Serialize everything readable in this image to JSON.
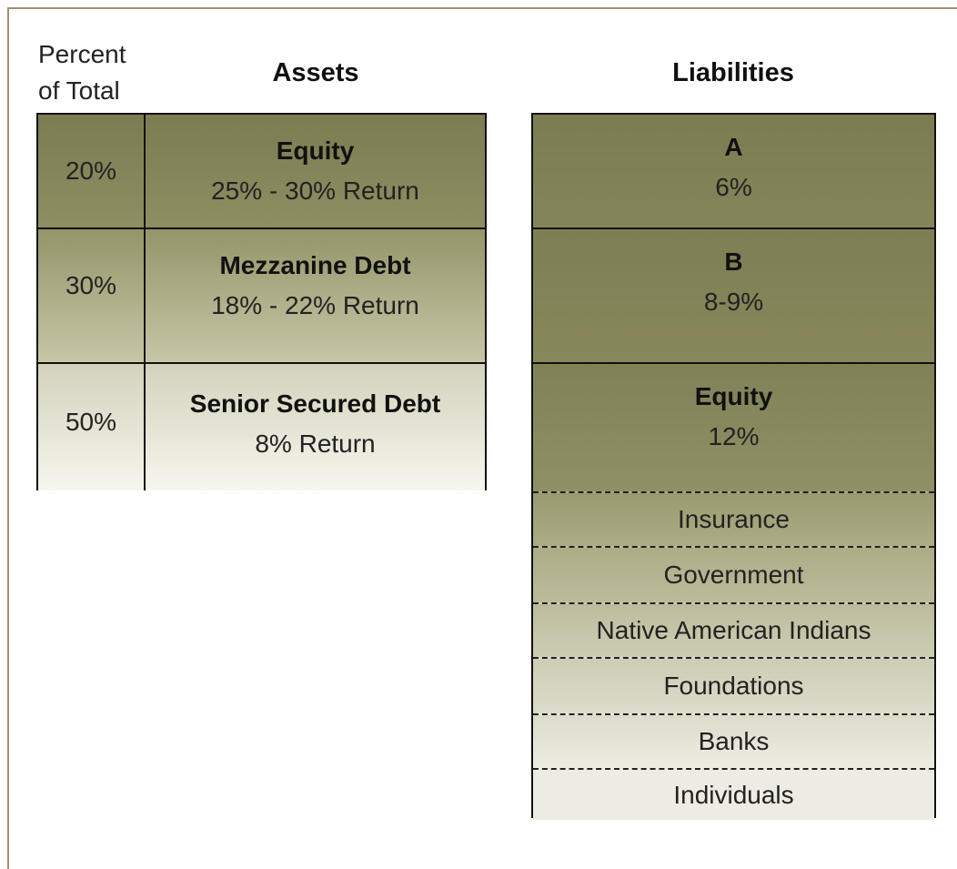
{
  "header": {
    "percent_label": [
      "Percent",
      "of Total"
    ],
    "assets_title": "Assets",
    "liabilities_title": "Liabilities"
  },
  "assets": [
    {
      "percent": "20%",
      "name": "Equity",
      "return": "25% - 30% Return"
    },
    {
      "percent": "30%",
      "name": "Mezzanine Debt",
      "return": "18% - 22% Return"
    },
    {
      "percent": "50%",
      "name": "Senior Secured Debt",
      "return": "8% Return"
    }
  ],
  "liabilities": [
    {
      "name": "A",
      "rate": "6%"
    },
    {
      "name": "B",
      "rate": "8-9%"
    },
    {
      "name": "Equity",
      "rate": "12%"
    }
  ],
  "investors": [
    "Insurance",
    "Government",
    "Native American Indians",
    "Foundations",
    "Banks",
    "Individuals"
  ]
}
